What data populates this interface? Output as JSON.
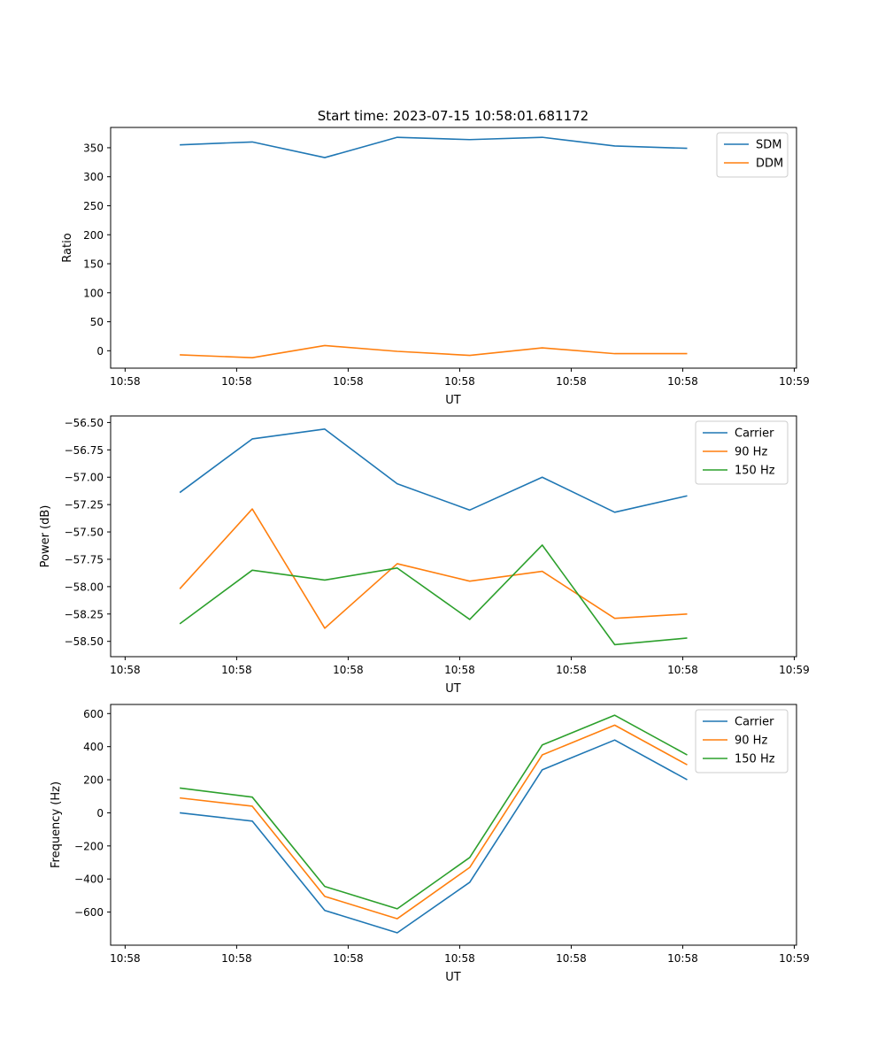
{
  "figure_title": "Start time: 2023-07-15 10:58:01.681172",
  "chart_data": [
    {
      "type": "line",
      "title": "Start time: 2023-07-15 10:58:01.681172",
      "xlabel": "UT",
      "ylabel": "Ratio",
      "grid": false,
      "legend_position": "top-right",
      "x_ticks": [
        0,
        1,
        2,
        3,
        4,
        5,
        6
      ],
      "x_tick_labels": [
        "10:58",
        "10:58",
        "10:58",
        "10:58",
        "10:58",
        "10:58",
        "10:59"
      ],
      "xlim": [
        -0.13,
        6.02
      ],
      "x": [
        0.49,
        1.14,
        1.79,
        2.44,
        3.09,
        3.74,
        4.39,
        5.04
      ],
      "ylim": [
        -30,
        385
      ],
      "y_ticks": [
        0,
        50,
        100,
        150,
        200,
        250,
        300,
        350
      ],
      "y_tick_labels": [
        "0",
        "50",
        "100",
        "150",
        "200",
        "250",
        "300",
        "350"
      ],
      "series": [
        {
          "name": "SDM",
          "color": "#1f77b4",
          "values": [
            355,
            360,
            333,
            368,
            364,
            368,
            353,
            349
          ]
        },
        {
          "name": "DDM",
          "color": "#ff7f0e",
          "values": [
            -7,
            -12,
            9,
            -1,
            -8,
            5,
            -5,
            -5
          ]
        }
      ]
    },
    {
      "type": "line",
      "xlabel": "UT",
      "ylabel": "Power (dB)",
      "grid": false,
      "legend_position": "top-right",
      "x_ticks": [
        0,
        1,
        2,
        3,
        4,
        5,
        6
      ],
      "x_tick_labels": [
        "10:58",
        "10:58",
        "10:58",
        "10:58",
        "10:58",
        "10:58",
        "10:59"
      ],
      "xlim": [
        -0.13,
        6.02
      ],
      "x": [
        0.49,
        1.14,
        1.79,
        2.44,
        3.09,
        3.74,
        4.39,
        5.04
      ],
      "ylim": [
        -58.64,
        -56.44
      ],
      "y_ticks": [
        -58.5,
        -58.25,
        -58.0,
        -57.75,
        -57.5,
        -57.25,
        -57.0,
        -56.75,
        -56.5
      ],
      "y_tick_labels": [
        "−58.50",
        "−58.25",
        "−58.00",
        "−57.75",
        "−57.50",
        "−57.25",
        "−57.00",
        "−56.75",
        "−56.50"
      ],
      "series": [
        {
          "name": "Carrier",
          "color": "#1f77b4",
          "values": [
            -57.14,
            -56.65,
            -56.56,
            -57.06,
            -57.3,
            -57.0,
            -57.32,
            -57.17
          ]
        },
        {
          "name": "90 Hz",
          "color": "#ff7f0e",
          "values": [
            -58.02,
            -57.29,
            -58.38,
            -57.79,
            -57.95,
            -57.86,
            -58.29,
            -58.25
          ]
        },
        {
          "name": "150 Hz",
          "color": "#2ca02c",
          "values": [
            -58.34,
            -57.85,
            -57.94,
            -57.83,
            -58.3,
            -57.62,
            -58.53,
            -58.47
          ]
        }
      ]
    },
    {
      "type": "line",
      "xlabel": "UT",
      "ylabel": "Frequency (Hz)",
      "grid": false,
      "legend_position": "top-right",
      "x_ticks": [
        0,
        1,
        2,
        3,
        4,
        5,
        6
      ],
      "x_tick_labels": [
        "10:58",
        "10:58",
        "10:58",
        "10:58",
        "10:58",
        "10:58",
        "10:59"
      ],
      "xlim": [
        -0.13,
        6.02
      ],
      "x": [
        0.49,
        1.14,
        1.79,
        2.44,
        3.09,
        3.74,
        4.39,
        5.04
      ],
      "ylim": [
        -800,
        655
      ],
      "y_ticks": [
        -600,
        -400,
        -200,
        0,
        200,
        400,
        600
      ],
      "y_tick_labels": [
        "−600",
        "−400",
        "−200",
        "0",
        "200",
        "400",
        "600"
      ],
      "series": [
        {
          "name": "Carrier",
          "color": "#1f77b4",
          "values": [
            0,
            -50,
            -590,
            -725,
            -420,
            260,
            440,
            200
          ]
        },
        {
          "name": "90 Hz",
          "color": "#ff7f0e",
          "values": [
            90,
            40,
            -505,
            -640,
            -330,
            350,
            530,
            290
          ]
        },
        {
          "name": "150 Hz",
          "color": "#2ca02c",
          "values": [
            150,
            95,
            -445,
            -580,
            -270,
            410,
            590,
            350
          ]
        }
      ]
    }
  ]
}
